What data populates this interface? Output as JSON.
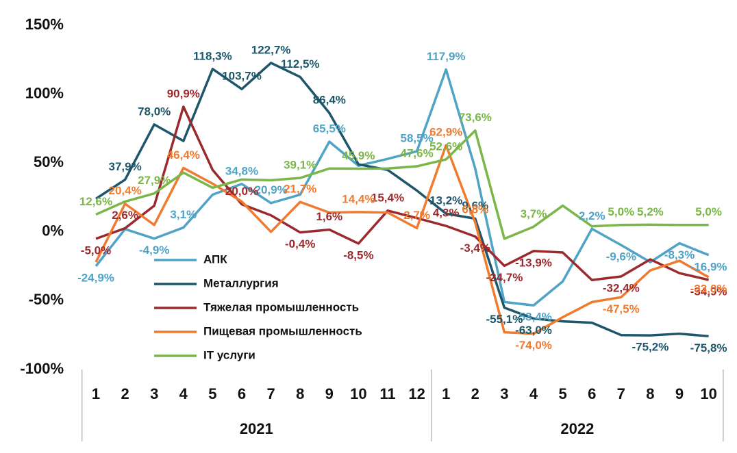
{
  "chart_data": {
    "type": "line",
    "categories": [
      "1",
      "2",
      "3",
      "4",
      "5",
      "6",
      "7",
      "8",
      "9",
      "10",
      "11",
      "12",
      "1",
      "2",
      "3",
      "4",
      "5",
      "6",
      "7",
      "8",
      "9",
      "10"
    ],
    "groups": [
      "2021",
      "2022"
    ],
    "ylim": [
      -100,
      150
    ],
    "yticks": [
      {
        "value": -100,
        "label": "-100%"
      },
      {
        "value": -50,
        "label": "-50%"
      },
      {
        "value": 0,
        "label": "0%"
      },
      {
        "value": 50,
        "label": "50%"
      },
      {
        "value": 100,
        "label": "100%"
      },
      {
        "value": 150,
        "label": "150%"
      }
    ],
    "grid": false,
    "legend": "lower left",
    "series": [
      {
        "name": "АПК",
        "color": "#4ea3c6",
        "values": [
          -24.9,
          2,
          -4.9,
          3.1,
          27,
          34.8,
          20.9,
          27,
          65.5,
          48,
          53,
          58.5,
          117.9,
          46,
          -51,
          -53.4,
          -36,
          2.2,
          -9.6,
          -22,
          -8.3,
          -16.9
        ],
        "value_labels": [
          "-24,9%",
          null,
          "-4,9%",
          "3,1%",
          null,
          "34,8%",
          "20,9%",
          null,
          "65,5%",
          null,
          null,
          "58,5%",
          "117,9%",
          null,
          null,
          "-53,4%",
          null,
          "2,2%",
          "-9,6%",
          null,
          "-8,3%",
          "-16,9%"
        ]
      },
      {
        "name": "Металлургия",
        "color": "#1d566b",
        "values": [
          24,
          37.9,
          78.0,
          66,
          118.3,
          103.7,
          122.7,
          112.5,
          86.4,
          49,
          45,
          30,
          13.2,
          9.6,
          -55.1,
          -63.0,
          -65,
          -66,
          -75,
          -75.2,
          -74,
          -75.8
        ],
        "value_labels": [
          null,
          "37,9%",
          "78,0%",
          null,
          "118,3%",
          "103,7%",
          "122,7%",
          "112,5%",
          "86,4%",
          null,
          null,
          null,
          "13,2%",
          "9,6%",
          "-55,1%",
          "-63,0%",
          null,
          null,
          null,
          "-75,2%",
          null,
          "-75,8%"
        ]
      },
      {
        "name": "Тяжелая промышленность",
        "color": "#9a2a2e",
        "values": [
          -5.0,
          2.6,
          19,
          90.9,
          45,
          20.0,
          12,
          -0.4,
          1.6,
          -8.5,
          15.4,
          10,
          4.3,
          -3.4,
          -24.7,
          -13.9,
          -15,
          -35,
          -32.4,
          -20,
          -30,
          -34.9
        ],
        "value_labels": [
          "-5,0%",
          "2,6%",
          null,
          "90,9%",
          null,
          "20,0%",
          null,
          "-0,4%",
          "1,6%",
          "-8,5%",
          "15,4%",
          null,
          "4,3%",
          "-3,4%",
          "-24,7%",
          "-13,9%",
          null,
          null,
          "-32,4%",
          null,
          null,
          "-34,9%"
        ]
      },
      {
        "name": "Пищевая промышленность",
        "color": "#f07a2e",
        "values": [
          -22,
          20.4,
          5,
          46.4,
          35,
          22,
          0,
          21.7,
          14,
          14.4,
          14,
          2.7,
          62.9,
          6.8,
          -73,
          -74.0,
          -62,
          -51,
          -47.5,
          -28,
          -21,
          -33.0
        ],
        "value_labels": [
          null,
          "20,4%",
          null,
          "46,4%",
          null,
          null,
          null,
          "21,7%",
          null,
          "14,4%",
          null,
          "2,7%",
          "62,9%",
          "6,8%",
          null,
          "-74,0%",
          null,
          null,
          "-47,5%",
          null,
          null,
          "-33,0%"
        ]
      },
      {
        "name": "IT услуги",
        "color": "#7ab648",
        "values": [
          12.6,
          22,
          27.9,
          43,
          32,
          38,
          37.5,
          39.1,
          46,
          45.9,
          46,
          47.6,
          52.6,
          73.6,
          -5,
          3.7,
          19,
          4,
          5.0,
          5.2,
          5,
          5.0
        ],
        "value_labels": [
          "12,6%",
          null,
          "27,9%",
          null,
          null,
          null,
          null,
          "39,1%",
          null,
          "45,9%",
          null,
          "47,6%",
          "52,6%",
          "73,6%",
          null,
          "3,7%",
          null,
          null,
          "5,0%",
          "5,2%",
          null,
          "5,0%"
        ]
      }
    ]
  }
}
